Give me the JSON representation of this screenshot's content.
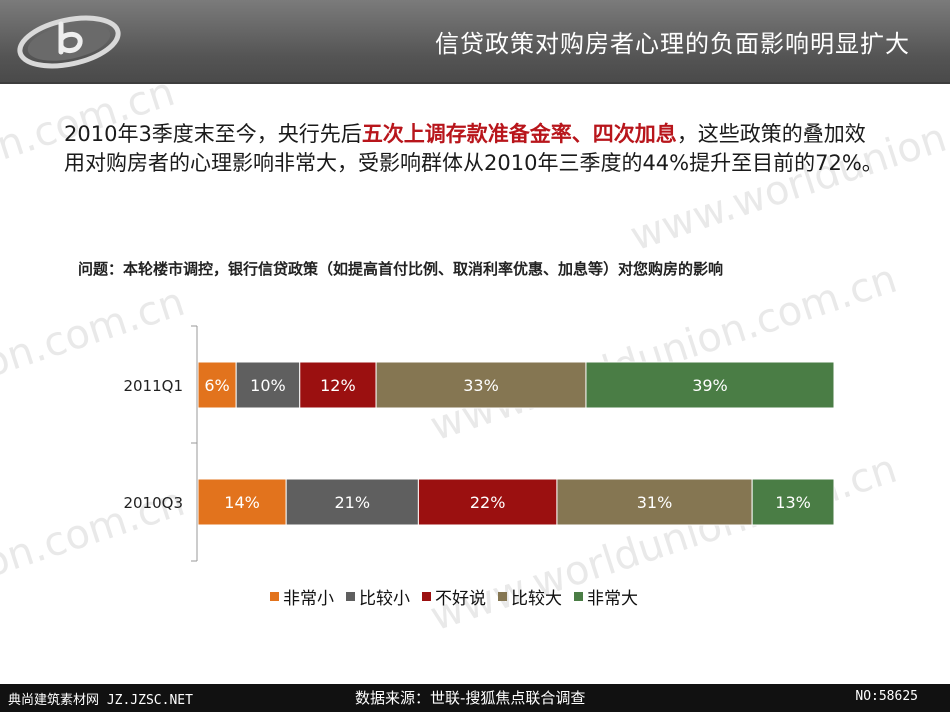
{
  "header": {
    "title": "信贷政策对购房者心理的负面影响明显扩大",
    "logo_letter": "b"
  },
  "watermark": {
    "text_a": "www.worldunion.com.cn",
    "text_b": "on.com.cn"
  },
  "intro": {
    "part1": "2010年3季度末至今，央行先后",
    "highlight": "五次上调存款准备金率、四次加息",
    "part2": "，这些政策的叠加效用对购房者的心理影响非常大，受影响群体从2010年三季度的44%提升至目前的72%。"
  },
  "question": "问题：本轮楼市调控，银行信贷政策（如提高首付比例、取消利率优惠、加息等）对您购房的影响",
  "chart_data": {
    "type": "bar",
    "orientation": "horizontal",
    "stacked": true,
    "categories": [
      "2011Q1",
      "2010Q3"
    ],
    "series": [
      {
        "name": "非常小",
        "color": "#e2731d",
        "values": [
          6,
          14
        ],
        "labels": [
          "6%",
          "14%"
        ]
      },
      {
        "name": "比较小",
        "color": "#5f5f5f",
        "values": [
          10,
          21
        ],
        "labels": [
          "10%",
          "21%"
        ]
      },
      {
        "name": "不好说",
        "color": "#9b1010",
        "values": [
          12,
          22
        ],
        "labels": [
          "12%",
          "22%"
        ]
      },
      {
        "name": "比较大",
        "color": "#857652",
        "values": [
          33,
          31
        ],
        "labels": [
          "33%",
          "31%"
        ]
      },
      {
        "name": "非常大",
        "color": "#4a7d45",
        "values": [
          39,
          13
        ],
        "labels": [
          "39%",
          "13%"
        ]
      }
    ],
    "xlim": [
      0,
      100
    ],
    "legend_position": "bottom"
  },
  "footer": {
    "left": "典尚建筑素材网 JZ.JZSC.NET",
    "center": "数据来源：世联-搜狐焦点联合调查",
    "right": "NO:58625"
  }
}
